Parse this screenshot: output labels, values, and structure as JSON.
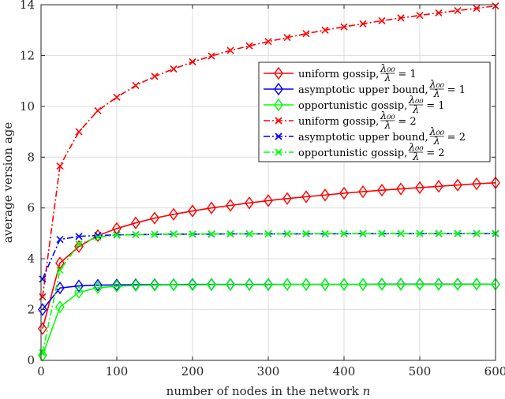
{
  "chart_data": {
    "type": "line",
    "xlabel": "number of nodes in the network",
    "xlabel_var": "n",
    "ylabel": "average version age",
    "xlim": [
      0,
      600
    ],
    "ylim": [
      0,
      14
    ],
    "xticks": [
      0,
      100,
      200,
      300,
      400,
      500,
      600
    ],
    "yticks": [
      0,
      2,
      4,
      6,
      8,
      10,
      12,
      14
    ],
    "grid": true,
    "legend_position": "top-right",
    "series": [
      {
        "name": "uniform gossip, λ00/λ = 1",
        "legend_prefix": "uniform gossip, ",
        "ratio_value": "1",
        "color": "#ff0000",
        "marker": "diamond",
        "dash": "solid",
        "x": [
          2,
          25,
          50,
          75,
          100,
          125,
          150,
          175,
          200,
          225,
          250,
          275,
          300,
          325,
          350,
          375,
          400,
          425,
          450,
          475,
          500,
          525,
          550,
          575,
          600
        ],
        "y": [
          1.25,
          3.83,
          4.48,
          4.91,
          5.19,
          5.41,
          5.6,
          5.75,
          5.88,
          6.0,
          6.1,
          6.2,
          6.29,
          6.37,
          6.44,
          6.51,
          6.58,
          6.64,
          6.7,
          6.75,
          6.8,
          6.85,
          6.9,
          6.95,
          6.99
        ]
      },
      {
        "name": "asymptotic upper bound, λ00/λ = 1",
        "legend_prefix": "asymptotic upper bound, ",
        "ratio_value": "1",
        "color": "#0000ff",
        "marker": "diamond",
        "dash": "solid",
        "x": [
          2,
          25,
          50,
          75,
          100,
          125,
          150,
          175,
          200,
          225,
          250,
          275,
          300,
          325,
          350,
          375,
          400,
          425,
          450,
          475,
          500,
          525,
          550,
          575,
          600
        ],
        "y": [
          2.0,
          2.85,
          2.93,
          2.96,
          2.97,
          2.98,
          2.98,
          2.98,
          2.99,
          2.99,
          2.99,
          2.99,
          2.99,
          2.99,
          2.99,
          2.99,
          2.99,
          2.99,
          3.0,
          3.0,
          3.0,
          3.0,
          3.0,
          3.0,
          3.0
        ]
      },
      {
        "name": "opportunistic gossip, λ00/λ = 1",
        "legend_prefix": "opportunistic gossip, ",
        "ratio_value": "1",
        "color": "#00ff00",
        "marker": "diamond",
        "dash": "solid",
        "x": [
          2,
          25,
          50,
          75,
          100,
          125,
          150,
          175,
          200,
          225,
          250,
          275,
          300,
          325,
          350,
          375,
          400,
          425,
          450,
          475,
          500,
          525,
          550,
          575,
          600
        ],
        "y": [
          0.2,
          2.1,
          2.68,
          2.86,
          2.92,
          2.95,
          2.96,
          2.97,
          2.97,
          2.98,
          2.98,
          2.98,
          2.98,
          2.99,
          2.99,
          2.99,
          2.99,
          2.99,
          2.99,
          2.99,
          2.99,
          2.99,
          2.99,
          3.0,
          3.0
        ]
      },
      {
        "name": "uniform gossip, λ00/λ = 2",
        "legend_prefix": "uniform gossip, ",
        "ratio_value": "2",
        "color": "#ff0000",
        "marker": "x",
        "dash": "dashdot",
        "x": [
          2,
          25,
          50,
          75,
          100,
          125,
          150,
          175,
          200,
          225,
          250,
          275,
          300,
          325,
          350,
          375,
          400,
          425,
          450,
          475,
          500,
          525,
          550,
          575,
          600
        ],
        "y": [
          2.5,
          7.65,
          9.0,
          9.83,
          10.36,
          10.82,
          11.18,
          11.47,
          11.75,
          11.98,
          12.2,
          12.38,
          12.55,
          12.71,
          12.86,
          13.0,
          13.13,
          13.25,
          13.37,
          13.48,
          13.58,
          13.68,
          13.77,
          13.86,
          13.95
        ]
      },
      {
        "name": "asymptotic upper bound, λ00/λ = 2",
        "legend_prefix": "asymptotic upper bound, ",
        "ratio_value": "2",
        "color": "#0000ff",
        "marker": "x",
        "dash": "dashdot",
        "x": [
          2,
          25,
          50,
          75,
          100,
          125,
          150,
          175,
          200,
          225,
          250,
          275,
          300,
          325,
          350,
          375,
          400,
          425,
          450,
          475,
          500,
          525,
          550,
          575,
          600
        ],
        "y": [
          3.2,
          4.76,
          4.88,
          4.92,
          4.94,
          4.95,
          4.96,
          4.97,
          4.97,
          4.97,
          4.98,
          4.98,
          4.98,
          4.98,
          4.98,
          4.98,
          4.99,
          4.99,
          4.99,
          4.99,
          4.99,
          4.99,
          4.99,
          4.99,
          4.99
        ]
      },
      {
        "name": "opportunistic gossip, λ00/λ = 2",
        "legend_prefix": "opportunistic gossip, ",
        "ratio_value": "2",
        "color": "#00ff00",
        "marker": "x",
        "dash": "dashdot",
        "x": [
          2,
          25,
          50,
          75,
          100,
          125,
          150,
          175,
          200,
          225,
          250,
          275,
          300,
          325,
          350,
          375,
          400,
          425,
          450,
          475,
          500,
          525,
          550,
          575,
          600
        ],
        "y": [
          0.3,
          3.55,
          4.58,
          4.85,
          4.93,
          4.95,
          4.96,
          4.97,
          4.97,
          4.98,
          4.98,
          4.98,
          4.98,
          4.98,
          4.99,
          4.99,
          4.99,
          4.99,
          4.99,
          4.99,
          4.99,
          4.99,
          4.99,
          4.99,
          5.0
        ]
      }
    ]
  }
}
